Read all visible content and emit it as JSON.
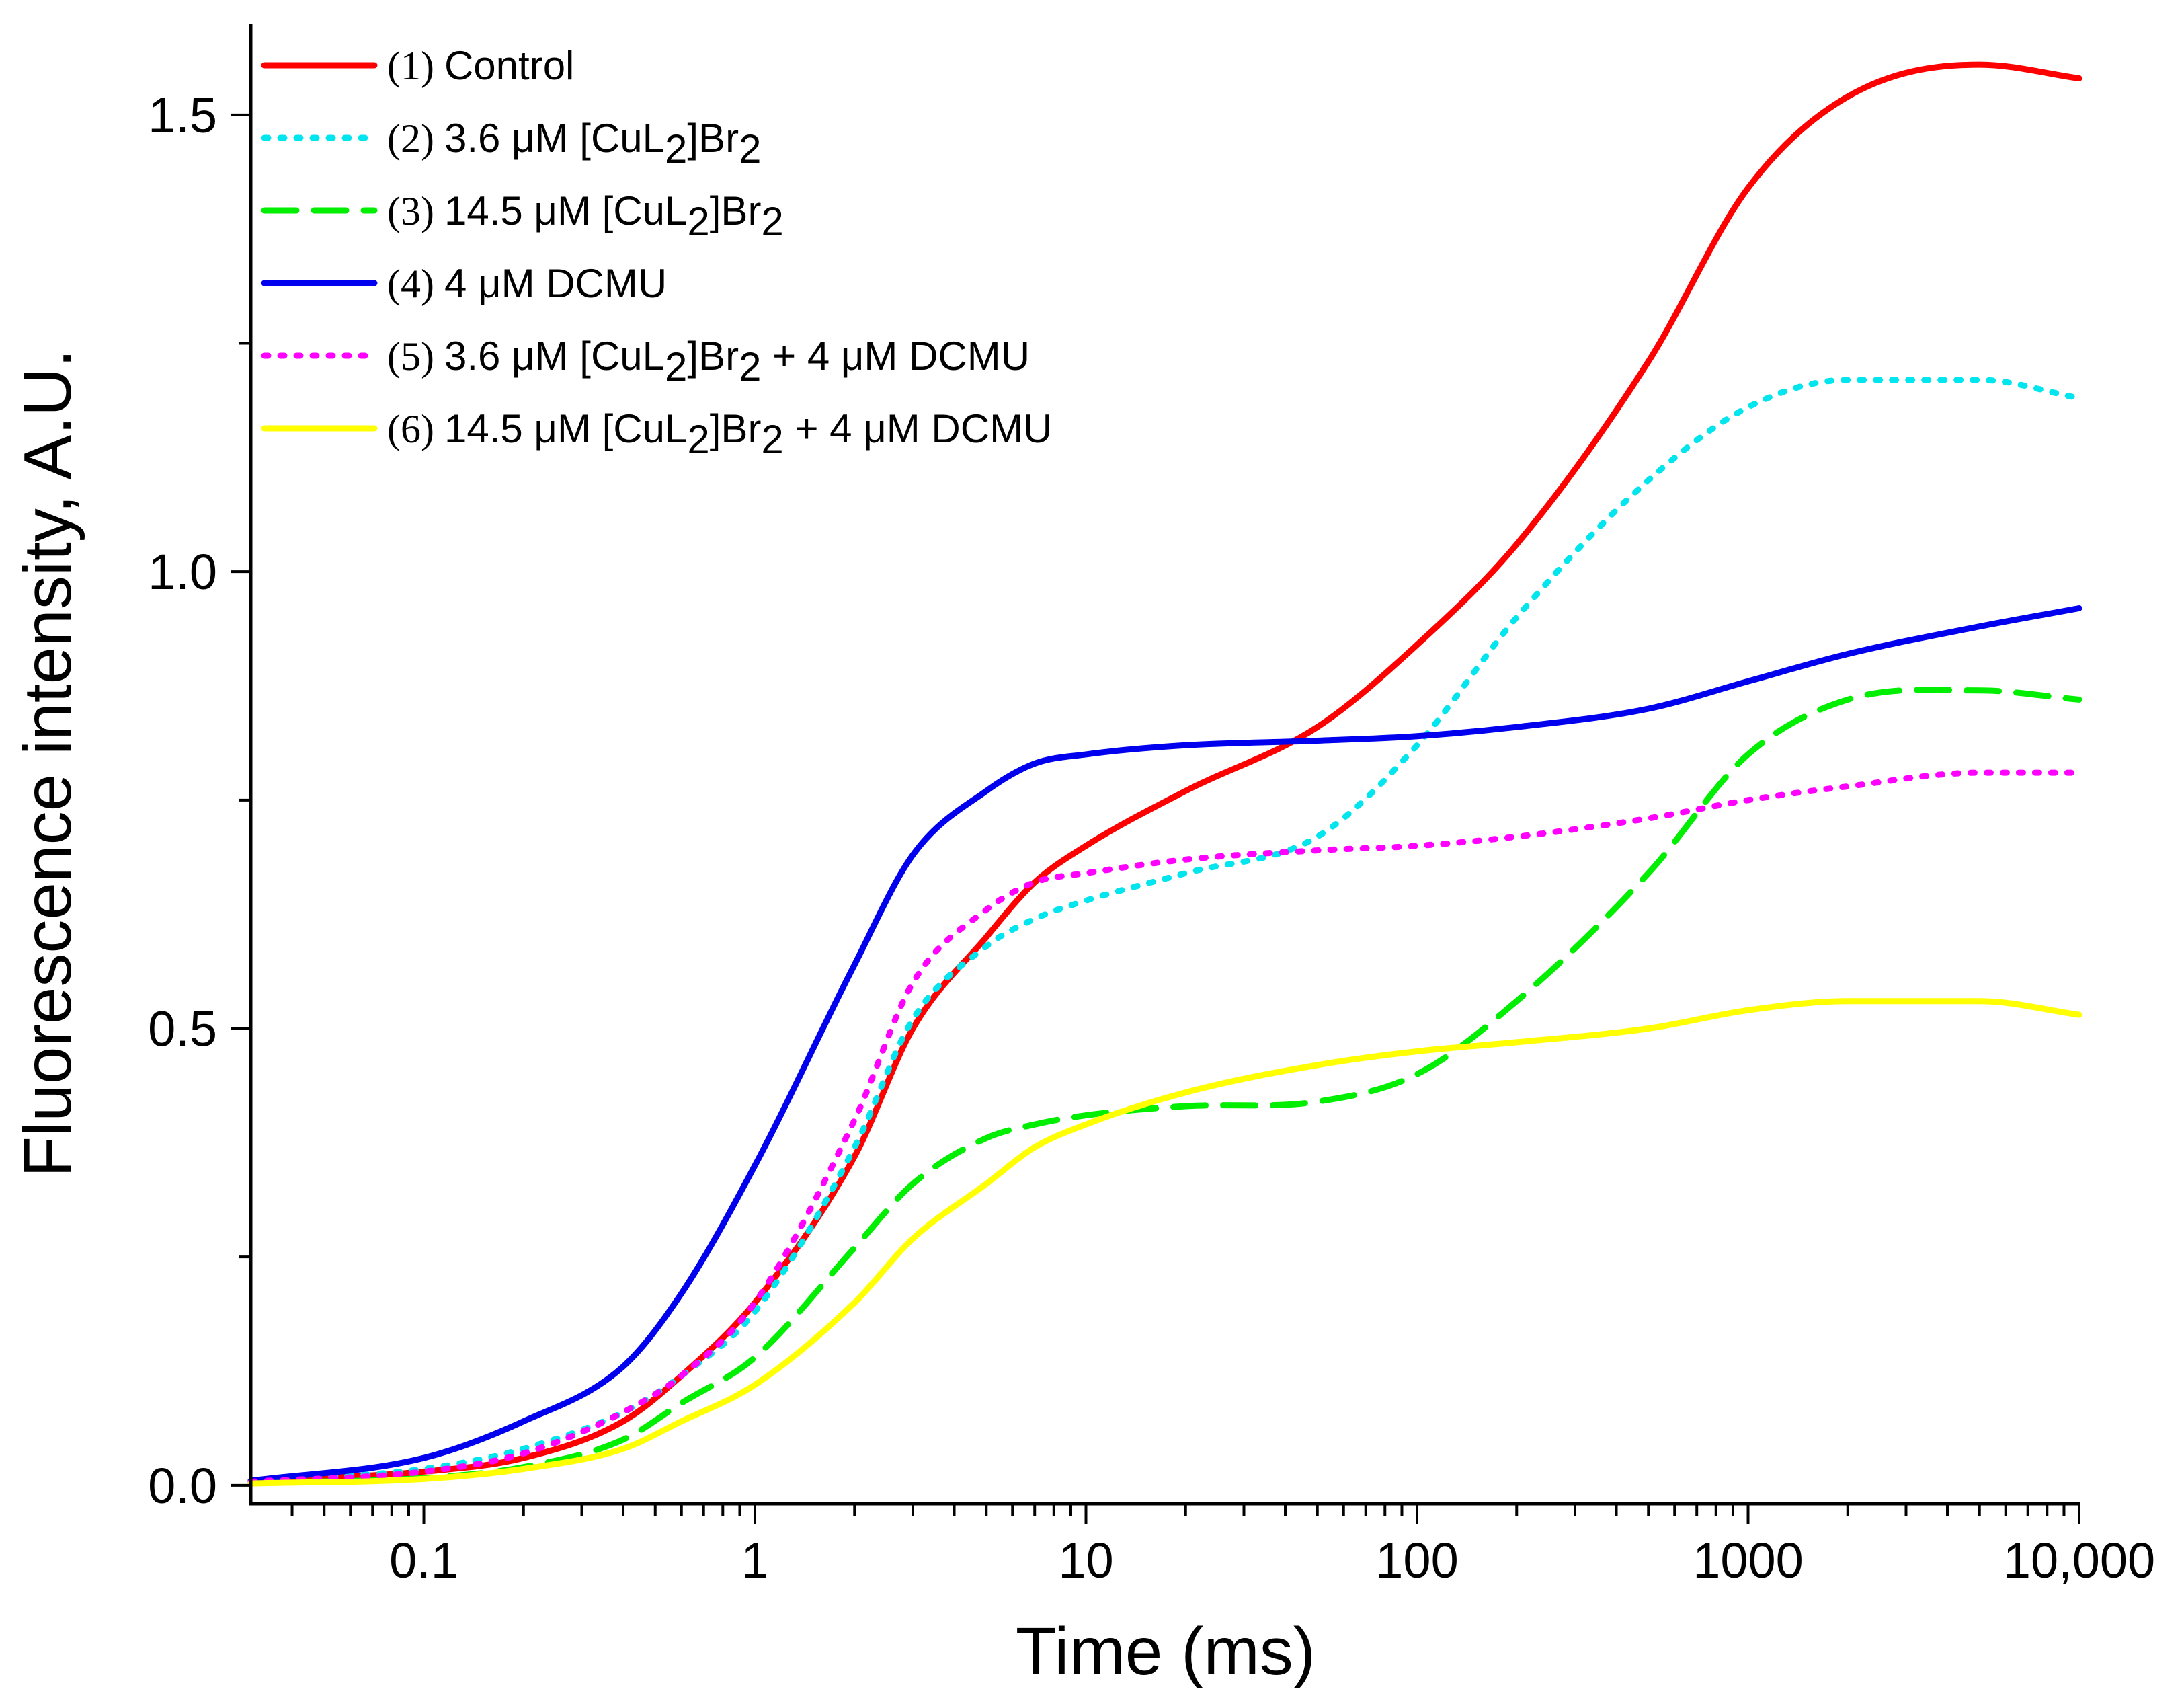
{
  "chart_data": {
    "type": "line",
    "title": "",
    "xlabel": "Time (ms)",
    "ylabel": "Fluorescence intensity, A.U.",
    "xscale": "log",
    "xlim": [
      0.03,
      10000
    ],
    "ylim": [
      -0.02,
      1.6
    ],
    "grid": false,
    "legend_position": "top-left",
    "x_ticks": [
      {
        "value": 0.1,
        "label": "0.1"
      },
      {
        "value": 1,
        "label": "1"
      },
      {
        "value": 10,
        "label": "10"
      },
      {
        "value": 100,
        "label": "100"
      },
      {
        "value": 1000,
        "label": "1000"
      },
      {
        "value": 10000,
        "label": "10,000"
      }
    ],
    "y_ticks": [
      {
        "value": 0.0,
        "label": "0.0"
      },
      {
        "value": 0.5,
        "label": "0.5"
      },
      {
        "value": 1.0,
        "label": "1.0"
      },
      {
        "value": 1.5,
        "label": "1.5"
      }
    ],
    "y_minor_ticks": [
      0.25,
      0.75,
      1.25
    ],
    "x": [
      0.03,
      0.1,
      0.2,
      0.4,
      0.6,
      1,
      2,
      3,
      5,
      7,
      10,
      20,
      50,
      100,
      200,
      500,
      1000,
      2000,
      5000,
      10000
    ],
    "series": [
      {
        "prefix": "(1)",
        "label": "Control",
        "label_sub": "",
        "label_tail": "",
        "color": "#ff0000",
        "dash": "solid",
        "values": [
          0.005,
          0.015,
          0.03,
          0.07,
          0.12,
          0.2,
          0.36,
          0.5,
          0.6,
          0.66,
          0.7,
          0.76,
          0.83,
          0.92,
          1.03,
          1.23,
          1.42,
          1.52,
          1.555,
          1.54
        ]
      },
      {
        "prefix": "(2)",
        "label": "3.6 μM [CuL",
        "label_sub": "2",
        "label_tail": "]Br",
        "label_sub2": "2",
        "color": "#00e5ee",
        "dash": "dotted",
        "values": [
          0.005,
          0.018,
          0.04,
          0.08,
          0.12,
          0.19,
          0.37,
          0.51,
          0.59,
          0.62,
          0.64,
          0.67,
          0.71,
          0.81,
          0.95,
          1.1,
          1.18,
          1.21,
          1.21,
          1.19
        ]
      },
      {
        "prefix": "(3)",
        "label": "14.5 μM [CuL",
        "label_sub": "2",
        "label_tail": "]Br",
        "label_sub2": "2",
        "color": "#00ee00",
        "dash": "dashed",
        "values": [
          0.003,
          0.008,
          0.02,
          0.05,
          0.09,
          0.14,
          0.26,
          0.33,
          0.38,
          0.395,
          0.405,
          0.415,
          0.42,
          0.45,
          0.53,
          0.67,
          0.8,
          0.86,
          0.87,
          0.86
        ]
      },
      {
        "prefix": "(4)",
        "label": "4 μM DCMU",
        "label_sub": "",
        "label_tail": "",
        "color": "#0000ee",
        "dash": "solid",
        "values": [
          0.005,
          0.03,
          0.07,
          0.13,
          0.21,
          0.35,
          0.57,
          0.69,
          0.76,
          0.79,
          0.8,
          0.81,
          0.815,
          0.82,
          0.83,
          0.85,
          0.88,
          0.91,
          0.94,
          0.96
        ]
      },
      {
        "prefix": "(5)",
        "label": "3.6 μM [CuL",
        "label_sub": "2",
        "label_tail": "]Br",
        "label_sub2": "2",
        "label_end": " + 4 μM DCMU",
        "color": "#ff00ff",
        "dash": "dotted",
        "values": [
          0.004,
          0.015,
          0.035,
          0.08,
          0.12,
          0.2,
          0.4,
          0.55,
          0.63,
          0.66,
          0.67,
          0.685,
          0.695,
          0.7,
          0.71,
          0.73,
          0.75,
          0.765,
          0.78,
          0.78
        ]
      },
      {
        "prefix": "(6)",
        "label": "14.5 μM [CuL",
        "label_sub": "2",
        "label_tail": "]Br",
        "label_sub2": "2",
        "label_end": " + 4 μM DCMU",
        "color": "#ffff00",
        "dash": "solid",
        "values": [
          0.002,
          0.007,
          0.018,
          0.04,
          0.07,
          0.11,
          0.2,
          0.27,
          0.33,
          0.37,
          0.395,
          0.43,
          0.46,
          0.475,
          0.485,
          0.5,
          0.52,
          0.53,
          0.53,
          0.515
        ]
      }
    ]
  }
}
